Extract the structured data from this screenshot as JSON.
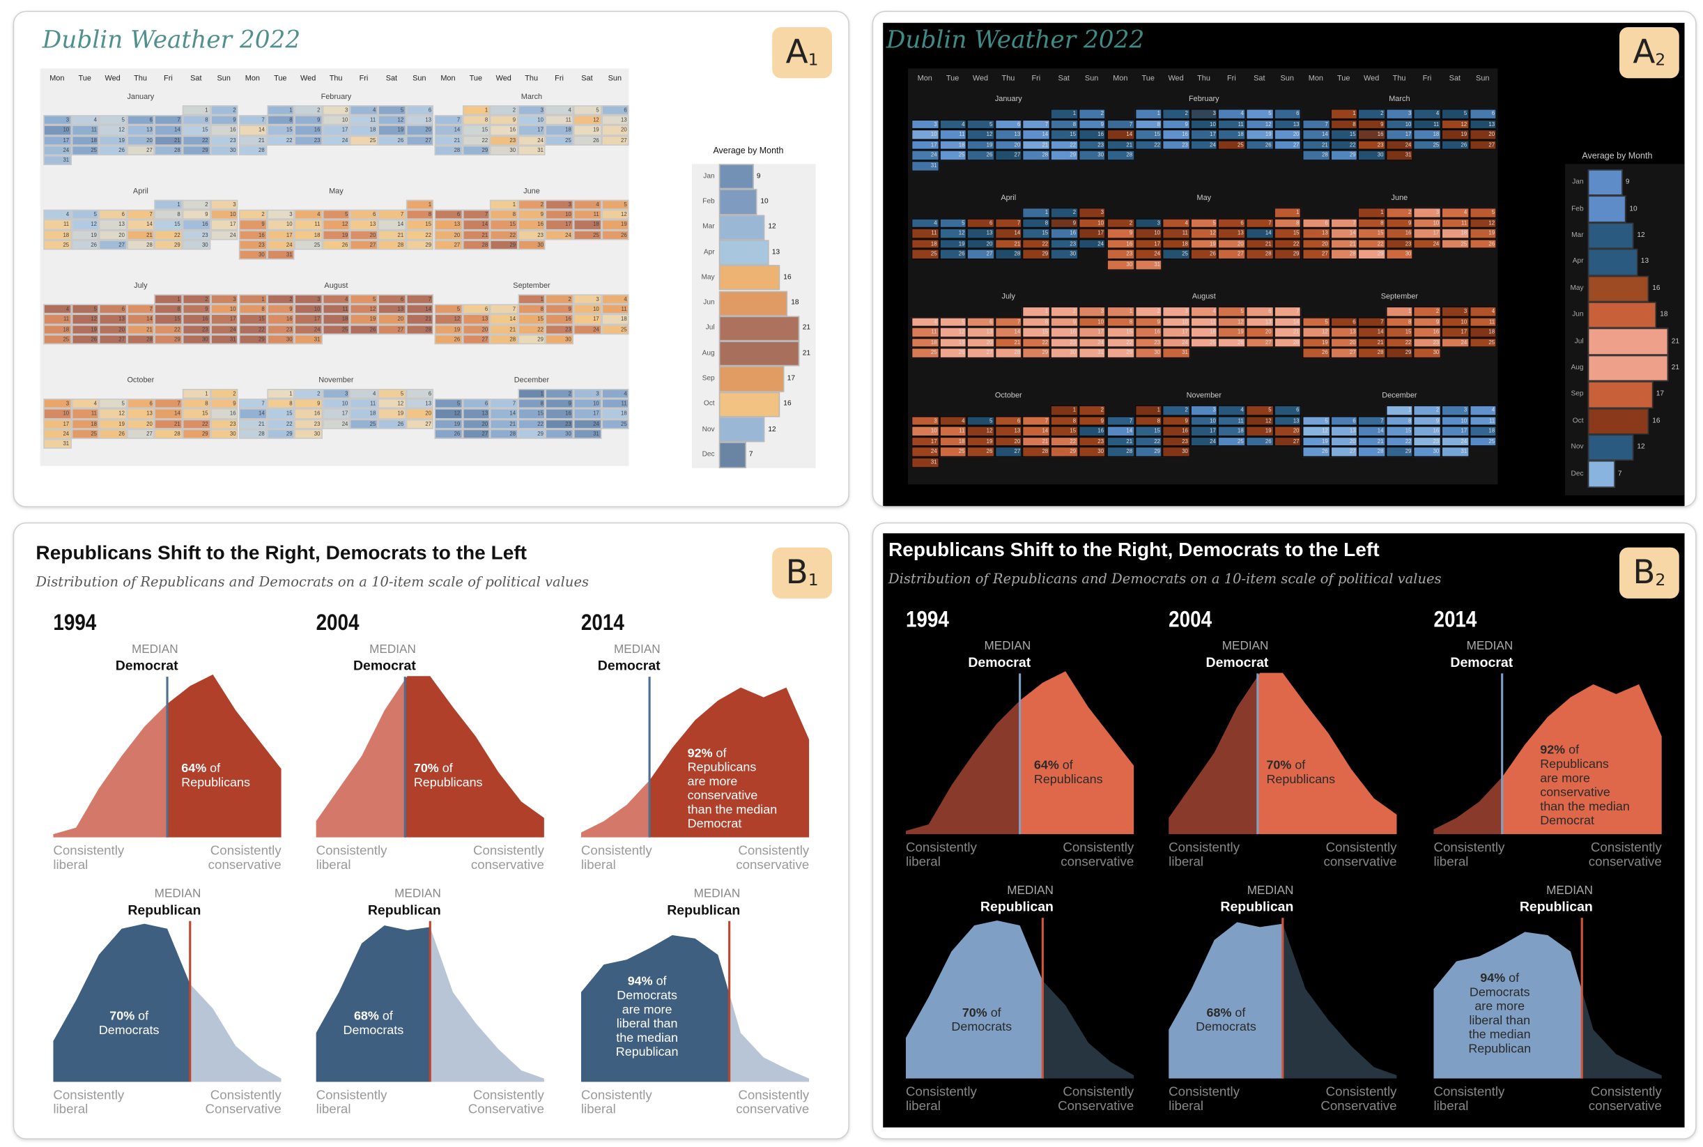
{
  "badges": {
    "A1": {
      "letter": "A",
      "sub": "1"
    },
    "A2": {
      "letter": "A",
      "sub": "2"
    },
    "B1": {
      "letter": "B",
      "sub": "1"
    },
    "B2": {
      "letter": "B",
      "sub": "2"
    }
  },
  "calendar": {
    "title": "Dublin Weather 2022",
    "year": 2022,
    "weekdays": [
      "Mon",
      "Tue",
      "Wed",
      "Thu",
      "Fri",
      "Sat",
      "Sun"
    ],
    "months": [
      "January",
      "February",
      "March",
      "April",
      "May",
      "June",
      "July",
      "August",
      "September",
      "October",
      "November",
      "December"
    ]
  },
  "palettes": {
    "light": {
      "stops": [
        4,
        8,
        11,
        13,
        15,
        17,
        19,
        22
      ],
      "colors": [
        "#6b88ad",
        "#8fadd0",
        "#b5cde3",
        "#e8dcc3",
        "#f3c98a",
        "#eba86b",
        "#d98c63",
        "#b06f5c"
      ],
      "bg": "#efefef"
    },
    "dark": {
      "stops": [
        4,
        8,
        11,
        12.9,
        13.1,
        16,
        18,
        22
      ],
      "colors": [
        "#8ab4e0",
        "#5b8fcc",
        "#2d5f86",
        "#1f4a68",
        "#7a3215",
        "#a5481e",
        "#cf6a3f",
        "#f0a68e"
      ],
      "bg": "#141414"
    }
  },
  "politics": {
    "title": "Republicans Shift to the Right, Democrats to the Left",
    "subtitle": "Distribution of Republicans and Democrats on a 10-item scale of political values",
    "median": "MEDIAN",
    "democrat": "Democrat",
    "republican": "Republican",
    "liberal": [
      "Consistently",
      "liberal"
    ],
    "conservative_top": [
      "Consistently",
      "conservative"
    ],
    "conservative_bottom": [
      "Consistently",
      "Conservative",
      "conservative"
    ]
  },
  "chart_data": [
    {
      "type": "bar",
      "orientation": "horizontal",
      "title": "Average by Month",
      "categories": [
        "Jan",
        "Feb",
        "Mar",
        "Apr",
        "May",
        "Jun",
        "Jul",
        "Aug",
        "Sep",
        "Oct",
        "Nov",
        "Dec"
      ],
      "values": [
        9,
        10,
        12,
        13,
        16,
        18,
        21,
        21,
        17,
        16,
        12,
        7
      ],
      "colors_light": [
        "#7390b5",
        "#7f9cc0",
        "#9ab8d6",
        "#a9c6df",
        "#ecb373",
        "#e09a63",
        "#ad725d",
        "#a96f5d",
        "#e09c63",
        "#f2c283",
        "#9ab8d6",
        "#6a84a4"
      ],
      "colors_dark": [
        "#5d8cc8",
        "#5d8cc8",
        "#2b5a80",
        "#2b5a80",
        "#9e4a22",
        "#c8603a",
        "#efa08a",
        "#efa08a",
        "#c8603a",
        "#8a3a1a",
        "#2b5a80",
        "#8ab4e0"
      ]
    },
    {
      "type": "area",
      "title": "Republicans Shift to the Right, Democrats to the Left",
      "x_range": [
        0,
        10
      ],
      "xlabel_left": "Consistently liberal",
      "xlabel_right": "Consistently conservative",
      "panels": [
        {
          "year": "1994",
          "group": "Republicans",
          "median_of": "Democrat",
          "median_x": 5.0,
          "density": [
            0.02,
            0.06,
            0.3,
            0.5,
            0.68,
            0.82,
            0.93,
            1.0,
            0.78,
            0.6,
            0.42
          ],
          "annotation_pct": "64%",
          "annotation": [
            "of",
            "Republicans"
          ]
        },
        {
          "year": "2004",
          "group": "Republicans",
          "median_of": "Democrat",
          "median_x": 3.9,
          "density": [
            0.1,
            0.3,
            0.5,
            0.78,
            0.99,
            0.99,
            0.8,
            0.62,
            0.4,
            0.22,
            0.12
          ],
          "annotation_pct": "70%",
          "annotation": [
            "of",
            "Republicans"
          ]
        },
        {
          "year": "2014",
          "group": "Republicans",
          "median_of": "Democrat",
          "median_x": 3.0,
          "density": [
            0.03,
            0.1,
            0.2,
            0.35,
            0.55,
            0.72,
            0.84,
            0.92,
            0.86,
            0.92,
            0.6
          ],
          "annotation_pct": "92%",
          "annotation": [
            "of",
            "Republicans",
            "are more",
            "conservative",
            "than the median",
            "Democrat"
          ]
        },
        {
          "year": "1994",
          "group": "Democrats",
          "median_of": "Republican",
          "median_x": 6.0,
          "density": [
            0.25,
            0.5,
            0.78,
            0.94,
            0.97,
            0.94,
            0.6,
            0.45,
            0.22,
            0.1,
            0.02
          ],
          "annotation_pct": "70%",
          "annotation": [
            "of",
            "Democrats"
          ]
        },
        {
          "year": "2004",
          "group": "Democrats",
          "median_of": "Republican",
          "median_x": 5.0,
          "density": [
            0.3,
            0.55,
            0.85,
            0.96,
            0.93,
            0.95,
            0.55,
            0.36,
            0.2,
            0.07,
            0.02
          ],
          "annotation_pct": "68%",
          "annotation": [
            "of",
            "Democrats"
          ]
        },
        {
          "year": "2014",
          "group": "Democrats",
          "median_of": "Republican",
          "median_x": 6.5,
          "density": [
            0.55,
            0.72,
            0.75,
            0.82,
            0.9,
            0.88,
            0.78,
            0.3,
            0.15,
            0.08,
            0.02
          ],
          "annotation_pct": "94%",
          "annotation": [
            "of",
            "Democrats",
            "are more",
            "liberal than",
            "the median",
            "Republican"
          ]
        }
      ]
    }
  ]
}
